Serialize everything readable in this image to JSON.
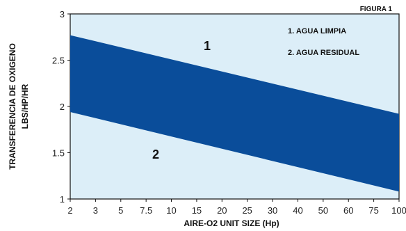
{
  "figure_label": "FIGURA 1",
  "legend": [
    "1. AGUA LIMPIA",
    "2. AGUA RESIDUAL"
  ],
  "region_labels": [
    "1",
    "2"
  ],
  "colors": {
    "plot_bg": "#dceef8",
    "band": "#0a4d9a",
    "axis": "#111111"
  },
  "chart_data": {
    "type": "area",
    "title": "",
    "xlabel": "AIRE-O2 UNIT SIZE (Hp)",
    "ylabel_lines": [
      "TRANSFERENCIA DE OXIGENO",
      "LBS/HP/HR"
    ],
    "x_tick_labels": [
      "2",
      "3",
      "5",
      "7.5",
      "10",
      "15",
      "20",
      "25",
      "30",
      "40",
      "50",
      "60",
      "75",
      "100"
    ],
    "y_ticks": [
      1,
      1.5,
      2,
      2.5,
      3
    ],
    "y_tick_labels": [
      "1",
      "1.5",
      "2",
      "2.5",
      "3"
    ],
    "ylim": [
      1,
      3
    ],
    "grid": false,
    "series": [
      {
        "name": "1. AGUA LIMPIA",
        "x_start": "2",
        "x_end": "100",
        "y_start": 2.77,
        "y_end": 1.92
      },
      {
        "name": "2. AGUA RESIDUAL",
        "x_start": "2",
        "x_end": "100",
        "y_start": 1.94,
        "y_end": 1.08
      }
    ]
  }
}
